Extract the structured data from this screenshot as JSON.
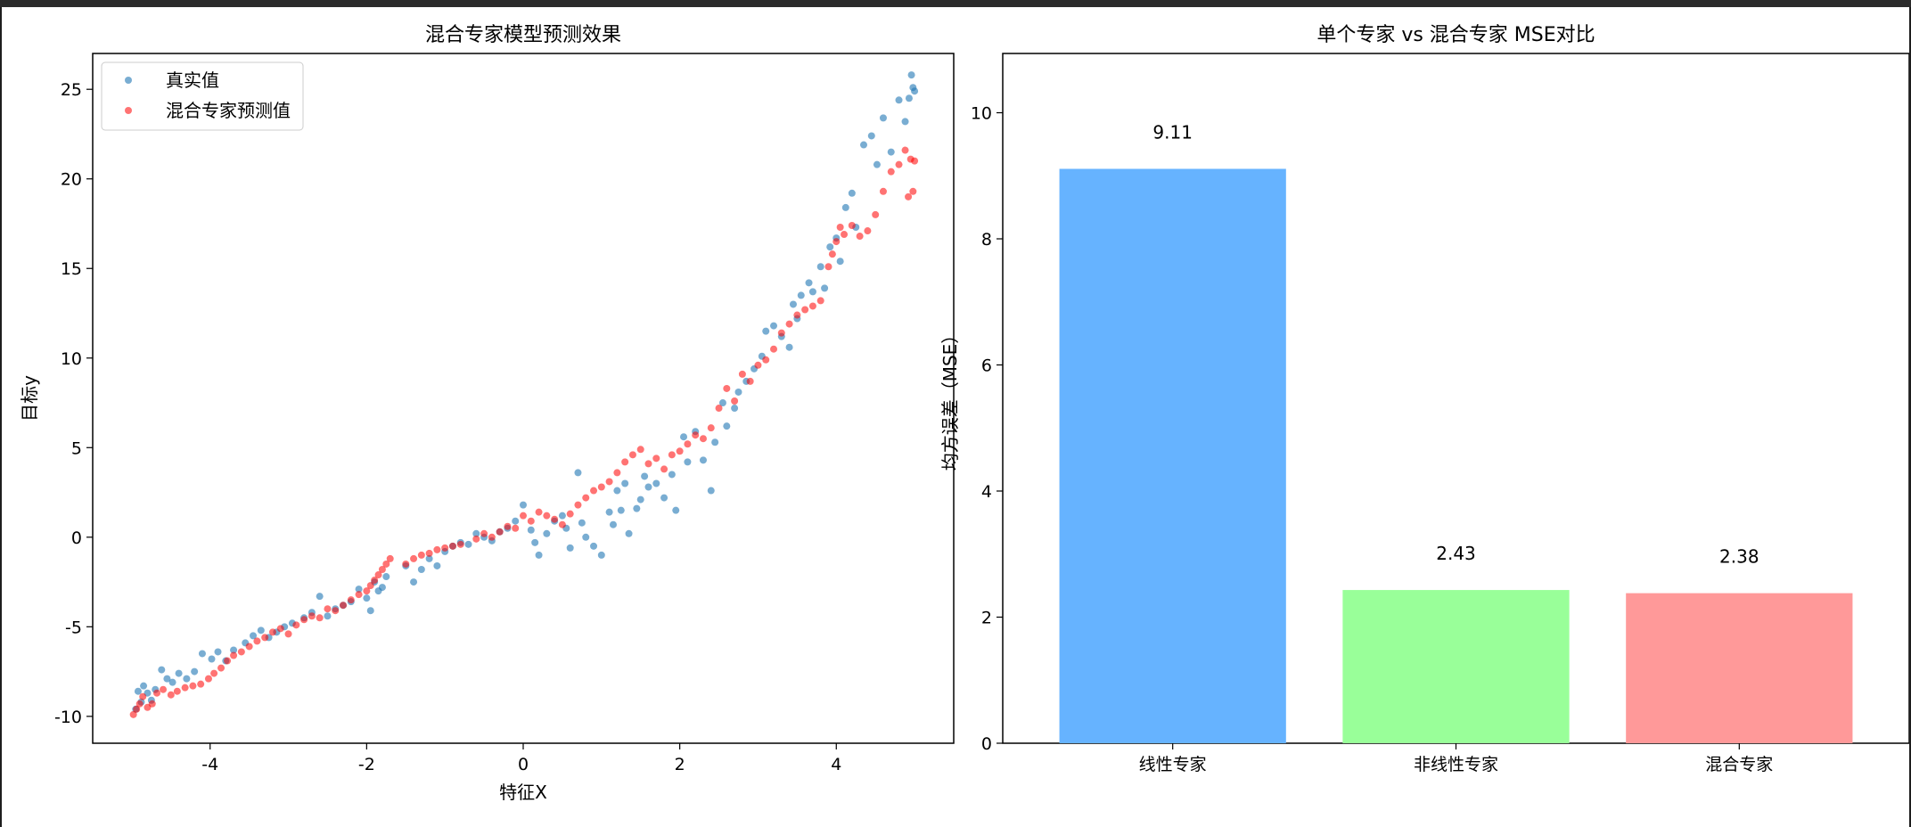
{
  "chart_data": [
    {
      "type": "scatter",
      "title": "混合专家模型预测效果",
      "xlabel": "特征X",
      "ylabel": "目标y",
      "xlim": [
        -5.5,
        5.5
      ],
      "ylim": [
        -11.5,
        27.0
      ],
      "xticks": [
        -4,
        -2,
        0,
        2,
        4
      ],
      "yticks": [
        -10,
        -5,
        0,
        5,
        10,
        15,
        20,
        25
      ],
      "legend_position": "upper-left",
      "grid": false,
      "series": [
        {
          "name": "真实值",
          "color": "#1f77b4",
          "points": [
            [
              -4.95,
              -9.6
            ],
            [
              -4.92,
              -8.6
            ],
            [
              -4.88,
              -9.2
            ],
            [
              -4.85,
              -8.3
            ],
            [
              -4.8,
              -8.7
            ],
            [
              -4.75,
              -9.1
            ],
            [
              -4.7,
              -8.5
            ],
            [
              -4.62,
              -7.4
            ],
            [
              -4.55,
              -7.9
            ],
            [
              -4.48,
              -8.1
            ],
            [
              -4.4,
              -7.6
            ],
            [
              -4.3,
              -7.9
            ],
            [
              -4.2,
              -7.5
            ],
            [
              -4.1,
              -6.5
            ],
            [
              -3.98,
              -6.8
            ],
            [
              -3.9,
              -6.4
            ],
            [
              -3.8,
              -6.9
            ],
            [
              -3.7,
              -6.3
            ],
            [
              -3.55,
              -5.9
            ],
            [
              -3.45,
              -5.5
            ],
            [
              -3.35,
              -5.2
            ],
            [
              -3.25,
              -5.6
            ],
            [
              -3.15,
              -5.3
            ],
            [
              -3.05,
              -5.0
            ],
            [
              -2.95,
              -4.8
            ],
            [
              -2.8,
              -4.5
            ],
            [
              -2.7,
              -4.2
            ],
            [
              -2.6,
              -3.3
            ],
            [
              -2.5,
              -4.4
            ],
            [
              -2.4,
              -4.0
            ],
            [
              -2.3,
              -3.8
            ],
            [
              -2.2,
              -3.6
            ],
            [
              -2.1,
              -2.9
            ],
            [
              -2.0,
              -3.4
            ],
            [
              -1.95,
              -4.1
            ],
            [
              -1.9,
              -2.5
            ],
            [
              -1.85,
              -3.0
            ],
            [
              -1.8,
              -2.8
            ],
            [
              -1.75,
              -2.2
            ],
            [
              -1.5,
              -1.6
            ],
            [
              -1.4,
              -2.5
            ],
            [
              -1.3,
              -1.8
            ],
            [
              -1.2,
              -1.2
            ],
            [
              -1.1,
              -1.6
            ],
            [
              -1.0,
              -0.8
            ],
            [
              -0.9,
              -0.5
            ],
            [
              -0.8,
              -0.3
            ],
            [
              -0.7,
              -0.4
            ],
            [
              -0.6,
              0.2
            ],
            [
              -0.5,
              0.0
            ],
            [
              -0.4,
              -0.2
            ],
            [
              -0.3,
              0.3
            ],
            [
              -0.2,
              0.5
            ],
            [
              -0.1,
              0.9
            ],
            [
              0.0,
              1.8
            ],
            [
              0.1,
              0.4
            ],
            [
              0.15,
              -0.3
            ],
            [
              0.2,
              -1.0
            ],
            [
              0.3,
              0.2
            ],
            [
              0.4,
              0.9
            ],
            [
              0.5,
              1.2
            ],
            [
              0.55,
              0.5
            ],
            [
              0.6,
              -0.6
            ],
            [
              0.7,
              3.6
            ],
            [
              0.75,
              0.8
            ],
            [
              0.8,
              0.0
            ],
            [
              0.9,
              -0.5
            ],
            [
              1.0,
              -1.0
            ],
            [
              1.1,
              1.4
            ],
            [
              1.15,
              0.7
            ],
            [
              1.2,
              2.6
            ],
            [
              1.25,
              1.5
            ],
            [
              1.3,
              3.0
            ],
            [
              1.35,
              0.2
            ],
            [
              1.45,
              1.6
            ],
            [
              1.5,
              2.1
            ],
            [
              1.55,
              3.4
            ],
            [
              1.6,
              2.8
            ],
            [
              1.7,
              3.0
            ],
            [
              1.8,
              2.2
            ],
            [
              1.9,
              3.5
            ],
            [
              1.95,
              1.5
            ],
            [
              2.05,
              5.6
            ],
            [
              2.1,
              4.2
            ],
            [
              2.2,
              5.9
            ],
            [
              2.3,
              4.3
            ],
            [
              2.4,
              2.6
            ],
            [
              2.45,
              5.3
            ],
            [
              2.55,
              7.5
            ],
            [
              2.6,
              6.2
            ],
            [
              2.7,
              7.2
            ],
            [
              2.75,
              8.1
            ],
            [
              2.85,
              8.7
            ],
            [
              2.95,
              9.4
            ],
            [
              3.05,
              10.1
            ],
            [
              3.1,
              11.5
            ],
            [
              3.2,
              11.8
            ],
            [
              3.3,
              11.2
            ],
            [
              3.4,
              10.6
            ],
            [
              3.45,
              13.0
            ],
            [
              3.5,
              12.2
            ],
            [
              3.55,
              13.5
            ],
            [
              3.65,
              14.2
            ],
            [
              3.7,
              13.7
            ],
            [
              3.8,
              15.1
            ],
            [
              3.85,
              13.9
            ],
            [
              3.92,
              16.2
            ],
            [
              4.0,
              16.7
            ],
            [
              4.05,
              15.4
            ],
            [
              4.12,
              18.4
            ],
            [
              4.2,
              19.2
            ],
            [
              4.25,
              17.3
            ],
            [
              4.35,
              21.9
            ],
            [
              4.45,
              22.4
            ],
            [
              4.52,
              20.8
            ],
            [
              4.6,
              23.4
            ],
            [
              4.7,
              21.5
            ],
            [
              4.8,
              24.4
            ],
            [
              4.88,
              23.2
            ],
            [
              4.93,
              24.5
            ],
            [
              4.96,
              25.8
            ],
            [
              4.98,
              25.1
            ],
            [
              5.0,
              24.9
            ]
          ]
        },
        {
          "name": "混合专家预测值",
          "color": "#ff0000",
          "points": [
            [
              -4.98,
              -9.9
            ],
            [
              -4.94,
              -9.6
            ],
            [
              -4.9,
              -9.3
            ],
            [
              -4.86,
              -8.9
            ],
            [
              -4.8,
              -9.5
            ],
            [
              -4.74,
              -9.3
            ],
            [
              -4.68,
              -8.7
            ],
            [
              -4.6,
              -8.5
            ],
            [
              -4.5,
              -8.8
            ],
            [
              -4.42,
              -8.6
            ],
            [
              -4.32,
              -8.4
            ],
            [
              -4.22,
              -8.3
            ],
            [
              -4.12,
              -8.2
            ],
            [
              -4.02,
              -7.9
            ],
            [
              -3.95,
              -7.6
            ],
            [
              -3.86,
              -7.3
            ],
            [
              -3.78,
              -6.9
            ],
            [
              -3.7,
              -6.6
            ],
            [
              -3.6,
              -6.4
            ],
            [
              -3.5,
              -6.1
            ],
            [
              -3.4,
              -5.8
            ],
            [
              -3.3,
              -5.6
            ],
            [
              -3.2,
              -5.3
            ],
            [
              -3.1,
              -5.1
            ],
            [
              -3.0,
              -5.4
            ],
            [
              -2.9,
              -4.9
            ],
            [
              -2.8,
              -4.6
            ],
            [
              -2.7,
              -4.4
            ],
            [
              -2.6,
              -4.5
            ],
            [
              -2.5,
              -4.0
            ],
            [
              -2.4,
              -4.1
            ],
            [
              -2.3,
              -3.8
            ],
            [
              -2.2,
              -3.5
            ],
            [
              -2.1,
              -3.2
            ],
            [
              -2.0,
              -3.0
            ],
            [
              -1.95,
              -2.7
            ],
            [
              -1.9,
              -2.4
            ],
            [
              -1.85,
              -2.1
            ],
            [
              -1.8,
              -1.8
            ],
            [
              -1.75,
              -1.5
            ],
            [
              -1.7,
              -1.2
            ],
            [
              -1.5,
              -1.5
            ],
            [
              -1.4,
              -1.2
            ],
            [
              -1.3,
              -1.0
            ],
            [
              -1.2,
              -0.9
            ],
            [
              -1.1,
              -0.7
            ],
            [
              -1.0,
              -0.6
            ],
            [
              -0.9,
              -0.5
            ],
            [
              -0.8,
              -0.4
            ],
            [
              -0.6,
              -0.1
            ],
            [
              -0.5,
              0.2
            ],
            [
              -0.4,
              0.0
            ],
            [
              -0.3,
              0.3
            ],
            [
              -0.2,
              0.6
            ],
            [
              -0.1,
              0.5
            ],
            [
              0.0,
              1.2
            ],
            [
              0.1,
              0.9
            ],
            [
              0.2,
              1.4
            ],
            [
              0.3,
              1.2
            ],
            [
              0.4,
              1.0
            ],
            [
              0.5,
              0.7
            ],
            [
              0.6,
              1.3
            ],
            [
              0.7,
              1.8
            ],
            [
              0.8,
              2.2
            ],
            [
              0.9,
              2.6
            ],
            [
              1.0,
              2.8
            ],
            [
              1.1,
              3.1
            ],
            [
              1.2,
              3.6
            ],
            [
              1.3,
              4.2
            ],
            [
              1.4,
              4.6
            ],
            [
              1.5,
              4.9
            ],
            [
              1.6,
              4.1
            ],
            [
              1.7,
              4.4
            ],
            [
              1.8,
              3.8
            ],
            [
              1.9,
              4.6
            ],
            [
              2.0,
              4.8
            ],
            [
              2.1,
              5.2
            ],
            [
              2.2,
              5.7
            ],
            [
              2.3,
              5.5
            ],
            [
              2.4,
              6.1
            ],
            [
              2.5,
              7.2
            ],
            [
              2.6,
              8.3
            ],
            [
              2.7,
              7.6
            ],
            [
              2.8,
              9.1
            ],
            [
              2.9,
              8.7
            ],
            [
              3.0,
              9.6
            ],
            [
              3.1,
              9.9
            ],
            [
              3.2,
              10.5
            ],
            [
              3.3,
              11.4
            ],
            [
              3.4,
              11.9
            ],
            [
              3.5,
              12.4
            ],
            [
              3.6,
              12.7
            ],
            [
              3.7,
              12.9
            ],
            [
              3.8,
              13.2
            ],
            [
              3.9,
              15.1
            ],
            [
              3.95,
              15.8
            ],
            [
              4.0,
              16.5
            ],
            [
              4.05,
              17.3
            ],
            [
              4.1,
              16.9
            ],
            [
              4.2,
              17.4
            ],
            [
              4.3,
              16.8
            ],
            [
              4.4,
              17.1
            ],
            [
              4.5,
              18.0
            ],
            [
              4.6,
              19.3
            ],
            [
              4.7,
              20.4
            ],
            [
              4.8,
              20.8
            ],
            [
              4.88,
              21.6
            ],
            [
              4.92,
              19.0
            ],
            [
              4.95,
              21.1
            ],
            [
              4.98,
              19.3
            ],
            [
              5.0,
              21.0
            ]
          ]
        }
      ]
    },
    {
      "type": "bar",
      "title": "单个专家 vs 混合专家 MSE对比",
      "xlabel": "",
      "ylabel": "均方误差（MSE）",
      "ylim": [
        0,
        10.94
      ],
      "yticks": [
        0,
        2,
        4,
        6,
        8,
        10
      ],
      "grid": false,
      "categories": [
        "线性专家",
        "非线性专家",
        "混合专家"
      ],
      "values": [
        9.11,
        2.43,
        2.38
      ],
      "value_labels": [
        "9.11",
        "2.43",
        "2.38"
      ],
      "colors": [
        "#66b3ff",
        "#99ff99",
        "#ff9999"
      ]
    }
  ]
}
